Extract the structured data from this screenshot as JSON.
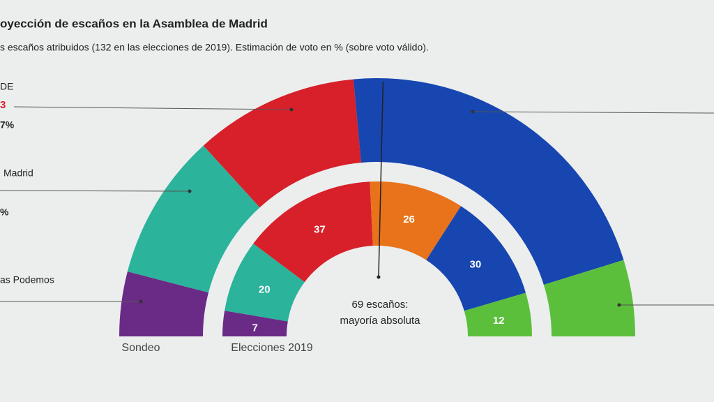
{
  "chart_data": {
    "type": "parliament",
    "title": "oyección de escaños en la Asamblea de Madrid",
    "subtitle": "s escaños atribuidos (132 en las elecciones de 2019). Estimación de voto en % (sobre voto válido).",
    "annotations": [
      "DE",
      "3",
      "7%",
      "Madrid",
      "%",
      "as Podemos"
    ],
    "majority": 69,
    "majority_label": [
      "69 escaños:",
      "mayoría absoluta"
    ],
    "rings": [
      {
        "name": "Sondeo",
        "values": [
          11,
          25,
          28,
          59,
          13
        ],
        "colors": [
          "#6a2b86",
          "#2bb39b",
          "#d7202a",
          "#1746b0",
          "#5cbf3c"
        ]
      },
      {
        "name": "Elecciones 2019",
        "values": [
          7,
          20,
          37,
          26,
          30,
          12
        ],
        "colors": [
          "#6a2b86",
          "#2bb39b",
          "#d7202a",
          "#e8731a",
          "#1746b0",
          "#5cbf3c"
        ]
      }
    ]
  }
}
